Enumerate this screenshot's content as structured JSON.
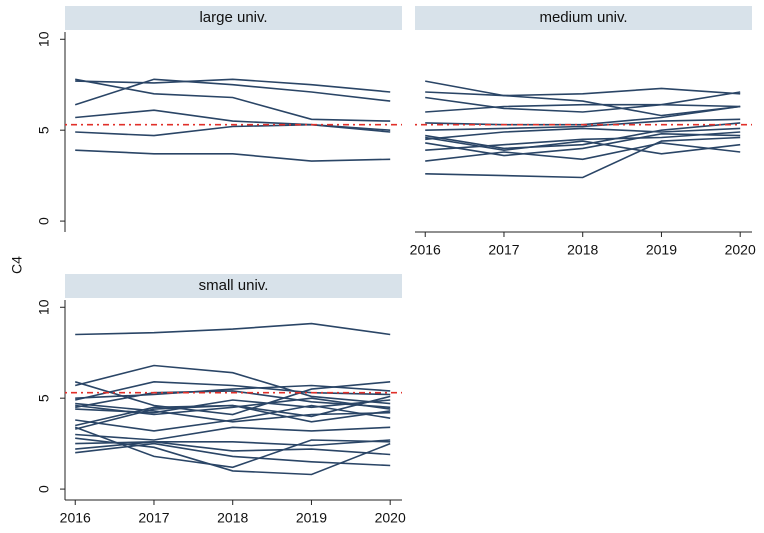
{
  "axis_label": "C4",
  "chart_data": [
    {
      "type": "line",
      "title": "large univ.",
      "color": "#2a4566",
      "x": [
        2016,
        2017,
        2018,
        2019,
        2020
      ],
      "xlim": [
        2015.87,
        2020.15
      ],
      "xticks": [
        2016,
        2017,
        2018,
        2019,
        2020
      ],
      "ylim": [
        -0.6,
        10.4
      ],
      "yticks": [
        0,
        5,
        10
      ],
      "hline": 5.3,
      "hline_color": "#e0302a",
      "series": [
        {
          "values": [
            7.7,
            7.6,
            7.8,
            7.5,
            7.1
          ]
        },
        {
          "values": [
            6.4,
            7.8,
            7.5,
            7.1,
            6.6
          ]
        },
        {
          "values": [
            7.8,
            7.0,
            6.8,
            5.6,
            5.5
          ]
        },
        {
          "values": [
            5.7,
            6.1,
            5.5,
            5.3,
            5.0
          ]
        },
        {
          "values": [
            4.9,
            4.7,
            5.2,
            5.3,
            4.9
          ]
        },
        {
          "values": [
            3.9,
            3.7,
            3.7,
            3.3,
            3.4
          ]
        }
      ]
    },
    {
      "type": "line",
      "title": "medium univ.",
      "color": "#2a4566",
      "x": [
        2016,
        2017,
        2018,
        2019,
        2020
      ],
      "xlim": [
        2015.87,
        2020.15
      ],
      "xticks": [
        2016,
        2017,
        2018,
        2019,
        2020
      ],
      "ylim": [
        -0.6,
        10.4
      ],
      "yticks": [
        0,
        5,
        10
      ],
      "hline": 5.3,
      "hline_color": "#e0302a",
      "series": [
        {
          "values": [
            7.7,
            6.9,
            6.6,
            5.8,
            6.3
          ]
        },
        {
          "values": [
            7.1,
            6.9,
            7.0,
            7.3,
            7.0
          ]
        },
        {
          "values": [
            6.8,
            6.2,
            6.0,
            6.4,
            7.1
          ]
        },
        {
          "values": [
            6.0,
            6.3,
            6.4,
            6.4,
            6.3
          ]
        },
        {
          "values": [
            5.4,
            5.3,
            5.3,
            5.7,
            6.3
          ]
        },
        {
          "values": [
            5.0,
            5.1,
            5.2,
            5.5,
            5.6
          ]
        },
        {
          "values": [
            4.7,
            4.0,
            4.2,
            5.0,
            5.4
          ]
        },
        {
          "values": [
            4.5,
            4.9,
            5.1,
            4.9,
            5.1
          ]
        },
        {
          "values": [
            4.3,
            3.6,
            4.0,
            4.8,
            4.7
          ]
        },
        {
          "values": [
            3.9,
            4.2,
            4.5,
            4.6,
            4.9
          ]
        },
        {
          "values": [
            3.3,
            3.8,
            3.4,
            4.3,
            3.8
          ]
        },
        {
          "values": [
            4.6,
            3.9,
            4.4,
            3.7,
            4.2
          ]
        },
        {
          "values": [
            2.6,
            2.5,
            2.4,
            4.4,
            4.6
          ]
        }
      ]
    },
    {
      "type": "line",
      "title": "small univ.",
      "color": "#2a4566",
      "x": [
        2016,
        2017,
        2018,
        2019,
        2020
      ],
      "xlim": [
        2015.87,
        2020.15
      ],
      "xticks": [
        2016,
        2017,
        2018,
        2019,
        2020
      ],
      "ylim": [
        -0.6,
        10.4
      ],
      "yticks": [
        0,
        5,
        10
      ],
      "hline": 5.3,
      "hline_color": "#e0302a",
      "series": [
        {
          "values": [
            8.5,
            8.6,
            8.8,
            9.1,
            8.5
          ]
        },
        {
          "values": [
            5.9,
            4.6,
            4.1,
            5.5,
            5.9
          ]
        },
        {
          "values": [
            5.7,
            6.8,
            6.4,
            5.1,
            4.7
          ]
        },
        {
          "values": [
            4.9,
            5.9,
            5.7,
            5.3,
            5.2
          ]
        },
        {
          "values": [
            4.6,
            4.1,
            4.5,
            5.0,
            4.4
          ]
        },
        {
          "values": [
            4.5,
            5.3,
            5.4,
            4.8,
            4.5
          ]
        },
        {
          "values": [
            4.4,
            4.2,
            4.9,
            4.5,
            4.9
          ]
        },
        {
          "values": [
            4.7,
            4.3,
            3.7,
            4.1,
            4.2
          ]
        },
        {
          "values": [
            3.3,
            4.4,
            4.6,
            4.0,
            5.1
          ]
        },
        {
          "values": [
            3.5,
            4.5,
            4.6,
            3.7,
            4.3
          ]
        },
        {
          "values": [
            3.0,
            2.7,
            3.4,
            3.2,
            3.4
          ]
        },
        {
          "values": [
            3.4,
            1.8,
            1.2,
            2.7,
            2.6
          ]
        },
        {
          "values": [
            2.2,
            2.6,
            2.6,
            2.4,
            2.7
          ]
        },
        {
          "values": [
            2.5,
            2.6,
            2.1,
            2.2,
            1.9
          ]
        },
        {
          "values": [
            2.8,
            2.3,
            1.0,
            0.8,
            2.5
          ]
        },
        {
          "values": [
            2.0,
            2.5,
            1.8,
            1.5,
            1.3
          ]
        },
        {
          "values": [
            3.8,
            3.2,
            3.8,
            4.6,
            3.9
          ]
        },
        {
          "values": [
            5.0,
            5.2,
            5.5,
            5.7,
            5.4
          ]
        }
      ]
    }
  ]
}
